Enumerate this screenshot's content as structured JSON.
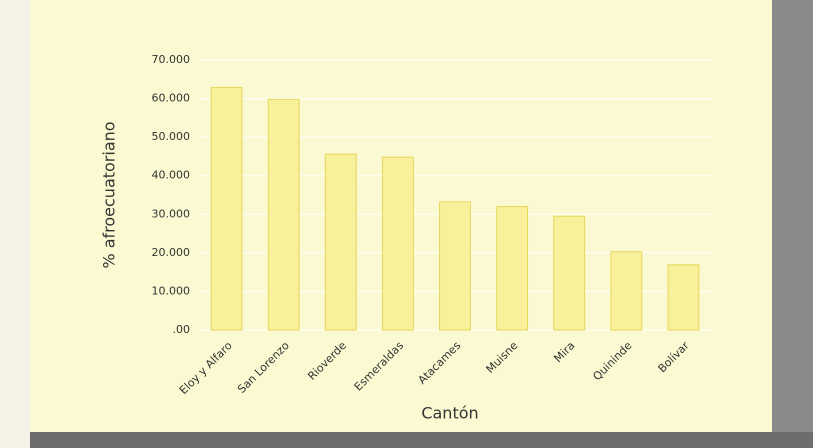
{
  "chart_data": {
    "type": "bar",
    "x_label": "Cantón",
    "y_label": "% afroecuatoriano",
    "categories": [
      "Eloy y Alfaro",
      "San Lorenzo",
      "Rioverde",
      "Esmeraldas",
      "Atacames",
      "Muisne",
      "Mira",
      "Quininde",
      "Bolívar"
    ],
    "values": [
      62.9,
      59.8,
      45.6,
      44.8,
      33.2,
      32.0,
      29.5,
      20.3,
      16.9
    ],
    "color": "#f8f09a",
    "ylim": [
      0,
      70
    ],
    "yticks": [
      {
        "value": 0,
        "label": ".00"
      },
      {
        "value": 10,
        "label": "10.000"
      },
      {
        "value": 20,
        "label": "20.000"
      },
      {
        "value": 30,
        "label": "30.000"
      },
      {
        "value": 40,
        "label": "40.000"
      },
      {
        "value": 50,
        "label": "50.000"
      },
      {
        "value": 60,
        "label": "60.000"
      },
      {
        "value": 70,
        "label": "70.000"
      }
    ],
    "grid": true
  }
}
